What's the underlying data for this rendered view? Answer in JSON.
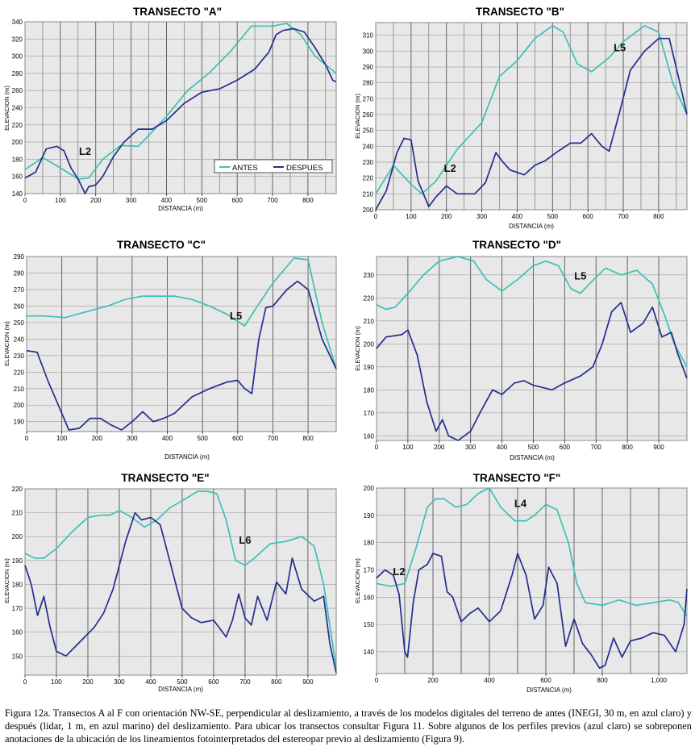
{
  "chart_data": [
    {
      "type": "line",
      "title": "TRANSECTO \"A\"",
      "xlabel": "DISTANCIA (m)",
      "ylabel": "ELEVACION (m)",
      "xlim": [
        0,
        880
      ],
      "ylim": [
        140,
        340
      ],
      "xticks": [
        0,
        100,
        200,
        300,
        400,
        500,
        600,
        700,
        800
      ],
      "xtick_labels": [
        "0",
        "100",
        "200",
        "300",
        "400",
        "500",
        "600",
        "700",
        "800"
      ],
      "yticks": [
        140,
        160,
        180,
        200,
        220,
        240,
        260,
        280,
        300,
        320,
        340
      ],
      "grid_step": 50,
      "legend": [
        "ANTES",
        "DESPUES"
      ],
      "annotations": [
        {
          "text": "L2",
          "x": 170,
          "y": 185
        }
      ],
      "series": [
        {
          "name": "ANTES",
          "color": "#3cc1b5",
          "x": [
            0,
            50,
            100,
            150,
            180,
            220,
            270,
            320,
            360,
            400,
            460,
            520,
            580,
            640,
            700,
            740,
            780,
            820,
            880
          ],
          "y": [
            168,
            182,
            170,
            157,
            158,
            180,
            196,
            195,
            212,
            230,
            260,
            280,
            305,
            335,
            335,
            338,
            325,
            300,
            280
          ]
        },
        {
          "name": "DESPUES",
          "color": "#242e8c",
          "x": [
            0,
            30,
            60,
            90,
            110,
            130,
            150,
            170,
            180,
            200,
            220,
            250,
            280,
            320,
            360,
            400,
            450,
            500,
            550,
            600,
            650,
            690,
            710,
            730,
            760,
            790,
            820,
            850,
            870,
            880
          ],
          "y": [
            158,
            165,
            192,
            195,
            190,
            170,
            157,
            140,
            148,
            150,
            160,
            183,
            200,
            215,
            215,
            225,
            245,
            258,
            262,
            272,
            285,
            305,
            325,
            330,
            332,
            328,
            310,
            290,
            272,
            270
          ]
        }
      ]
    },
    {
      "type": "line",
      "title": "TRANSECTO \"B\"",
      "xlabel": "DISTANCIA (m)",
      "ylabel": "ELEVACION (m)",
      "xlim": [
        0,
        880
      ],
      "ylim": [
        200,
        318
      ],
      "xticks": [
        0,
        100,
        200,
        300,
        400,
        500,
        600,
        700,
        800
      ],
      "xtick_labels": [
        "0",
        "100",
        "200",
        "300",
        "400",
        "500",
        "600",
        "700",
        "800"
      ],
      "yticks": [
        200,
        210,
        220,
        230,
        240,
        250,
        260,
        270,
        280,
        290,
        300,
        310
      ],
      "grid_step": 50,
      "annotations": [
        {
          "text": "L2",
          "x": 210,
          "y": 224
        },
        {
          "text": "L5",
          "x": 690,
          "y": 300
        }
      ],
      "series": [
        {
          "name": "ANTES",
          "color": "#3cc1b5",
          "x": [
            0,
            50,
            100,
            130,
            170,
            230,
            300,
            350,
            400,
            450,
            500,
            530,
            570,
            610,
            660,
            700,
            760,
            800,
            840,
            880
          ],
          "y": [
            210,
            228,
            216,
            210,
            218,
            238,
            255,
            284,
            294,
            308,
            316,
            312,
            292,
            287,
            296,
            306,
            316,
            312,
            280,
            260
          ]
        },
        {
          "name": "DESPUES",
          "color": "#242e8c",
          "x": [
            0,
            30,
            60,
            80,
            100,
            120,
            150,
            170,
            200,
            230,
            260,
            280,
            310,
            340,
            360,
            380,
            420,
            450,
            480,
            510,
            550,
            580,
            610,
            640,
            660,
            690,
            720,
            760,
            800,
            830,
            860,
            880
          ],
          "y": [
            200,
            212,
            236,
            245,
            244,
            218,
            202,
            208,
            215,
            210,
            210,
            210,
            217,
            236,
            230,
            225,
            222,
            228,
            231,
            236,
            242,
            242,
            248,
            240,
            237,
            262,
            288,
            300,
            308,
            308,
            280,
            260
          ]
        }
      ]
    },
    {
      "type": "line",
      "title": "TRANSECTO \"C\"",
      "xlabel": "DISTANCIA (m)",
      "ylabel": "ELEVACION (m)",
      "xlim": [
        0,
        880
      ],
      "ylim": [
        184,
        290
      ],
      "xticks": [
        0,
        100,
        200,
        300,
        400,
        500,
        600,
        700,
        800
      ],
      "xtick_labels": [
        "0",
        "100",
        "200",
        "300",
        "400",
        "500",
        "600",
        "700",
        "800"
      ],
      "yticks": [
        190,
        200,
        210,
        220,
        230,
        240,
        250,
        260,
        270,
        280,
        290
      ],
      "grid_step": 100,
      "annotations": [
        {
          "text": "L5",
          "x": 595,
          "y": 252
        }
      ],
      "series": [
        {
          "name": "ANTES",
          "color": "#3cc1b5",
          "x": [
            0,
            50,
            110,
            160,
            230,
            280,
            330,
            380,
            420,
            470,
            520,
            570,
            620,
            650,
            700,
            760,
            800,
            840,
            880
          ],
          "y": [
            254,
            254,
            253,
            256,
            260,
            264,
            266,
            266,
            266,
            264,
            260,
            255,
            248,
            258,
            274,
            289,
            288,
            250,
            222
          ]
        },
        {
          "name": "DESPUES",
          "color": "#242e8c",
          "x": [
            0,
            30,
            60,
            90,
            120,
            150,
            180,
            210,
            240,
            270,
            300,
            330,
            360,
            390,
            420,
            470,
            520,
            570,
            600,
            620,
            640,
            660,
            680,
            700,
            740,
            770,
            800,
            840,
            880
          ],
          "y": [
            233,
            232,
            215,
            200,
            185,
            186,
            192,
            192,
            188,
            185,
            190,
            196,
            190,
            192,
            195,
            205,
            210,
            214,
            215,
            210,
            207,
            240,
            259,
            260,
            270,
            275,
            270,
            240,
            222
          ]
        }
      ]
    },
    {
      "type": "line",
      "title": "TRANSECTO \"D\"",
      "xlabel": "DISTANCIA (m)",
      "ylabel": "ELEVACION (m)",
      "xlim": [
        0,
        990
      ],
      "ylim": [
        158,
        238
      ],
      "xticks": [
        0,
        100,
        200,
        300,
        400,
        500,
        600,
        700,
        800,
        900
      ],
      "xtick_labels": [
        "0",
        "100",
        "200",
        "300",
        "400",
        "500",
        "600",
        "700",
        "800",
        "900"
      ],
      "yticks": [
        160,
        170,
        180,
        190,
        200,
        210,
        220,
        230
      ],
      "grid_step": 100,
      "annotations": [
        {
          "text": "L5",
          "x": 650,
          "y": 228
        }
      ],
      "series": [
        {
          "name": "ANTES",
          "color": "#3cc1b5",
          "x": [
            0,
            30,
            60,
            100,
            150,
            200,
            260,
            310,
            350,
            400,
            450,
            500,
            540,
            580,
            620,
            650,
            700,
            730,
            780,
            830,
            880,
            920,
            950,
            990
          ],
          "y": [
            217,
            215,
            216,
            222,
            230,
            236,
            238,
            236,
            228,
            223,
            228,
            234,
            236,
            234,
            224,
            222,
            229,
            233,
            230,
            232,
            226,
            212,
            200,
            190
          ]
        },
        {
          "name": "DESPUES",
          "color": "#242e8c",
          "x": [
            0,
            30,
            80,
            100,
            130,
            160,
            190,
            210,
            230,
            260,
            280,
            300,
            330,
            370,
            400,
            440,
            470,
            500,
            530,
            560,
            600,
            650,
            690,
            720,
            750,
            780,
            810,
            850,
            880,
            910,
            940,
            960,
            990
          ],
          "y": [
            198,
            203,
            204,
            206,
            195,
            175,
            162,
            167,
            160,
            158,
            160,
            162,
            170,
            180,
            178,
            183,
            184,
            182,
            181,
            180,
            183,
            186,
            190,
            200,
            214,
            218,
            205,
            209,
            216,
            203,
            205,
            196,
            185
          ]
        }
      ]
    },
    {
      "type": "line",
      "title": "TRANSECTO \"E\"",
      "xlabel": "DISTANCIA (m)",
      "ylabel": "ELEVACION (m)",
      "xlim": [
        0,
        990
      ],
      "ylim": [
        142,
        220
      ],
      "xticks": [
        0,
        100,
        200,
        300,
        400,
        500,
        600,
        700,
        800,
        900
      ],
      "xtick_labels": [
        "0",
        "100",
        "200",
        "300",
        "400",
        "500",
        "600",
        "700",
        "800",
        "900"
      ],
      "yticks": [
        150,
        160,
        170,
        180,
        190,
        200,
        210,
        220
      ],
      "grid_step": 100,
      "annotations": [
        {
          "text": "L6",
          "x": 700,
          "y": 197
        }
      ],
      "series": [
        {
          "name": "ANTES",
          "color": "#3cc1b5",
          "x": [
            0,
            30,
            60,
            100,
            150,
            200,
            240,
            270,
            300,
            340,
            380,
            420,
            460,
            500,
            550,
            580,
            610,
            640,
            670,
            700,
            730,
            780,
            830,
            880,
            920,
            950,
            990
          ],
          "y": [
            193,
            191,
            191,
            195,
            202,
            208,
            209,
            209,
            211,
            208,
            204,
            207,
            212,
            215,
            219,
            219,
            218,
            207,
            190,
            188,
            191,
            197,
            198,
            200,
            196,
            180,
            145
          ]
        },
        {
          "name": "DESPUES",
          "color": "#242e8c",
          "x": [
            0,
            20,
            40,
            60,
            80,
            100,
            130,
            160,
            190,
            220,
            250,
            280,
            320,
            350,
            370,
            400,
            430,
            460,
            500,
            530,
            560,
            600,
            640,
            660,
            680,
            700,
            720,
            740,
            770,
            800,
            830,
            850,
            880,
            920,
            950,
            970,
            990
          ],
          "y": [
            188,
            180,
            167,
            175,
            162,
            152,
            150,
            154,
            158,
            162,
            168,
            178,
            198,
            210,
            207,
            208,
            205,
            190,
            170,
            166,
            164,
            165,
            158,
            165,
            176,
            166,
            163,
            175,
            165,
            181,
            176,
            191,
            178,
            173,
            175,
            155,
            143
          ]
        }
      ]
    },
    {
      "type": "line",
      "title": "TRANSECTO \"F\"",
      "xlabel": "DISTANCIA (m)",
      "ylabel": "ELEVACION (m)",
      "xlim": [
        0,
        1100
      ],
      "ylim": [
        132,
        200
      ],
      "xticks": [
        0,
        200,
        400,
        600,
        800,
        1000
      ],
      "xtick_labels": [
        "0",
        "200",
        "400",
        "600",
        "800",
        "1,000"
      ],
      "yticks": [
        140,
        150,
        160,
        170,
        180,
        190,
        200
      ],
      "grid_step": 100,
      "annotations": [
        {
          "text": "L2",
          "x": 80,
          "y": 168
        },
        {
          "text": "L4",
          "x": 510,
          "y": 193
        }
      ],
      "series": [
        {
          "name": "ANTES",
          "color": "#3cc1b5",
          "x": [
            0,
            50,
            100,
            140,
            180,
            210,
            240,
            280,
            320,
            360,
            400,
            440,
            490,
            530,
            560,
            600,
            640,
            680,
            710,
            740,
            800,
            860,
            920,
            980,
            1040,
            1070,
            1100
          ],
          "y": [
            165,
            164,
            165,
            178,
            193,
            196,
            196,
            193,
            194,
            198,
            200,
            193,
            188,
            188,
            190,
            194,
            192,
            180,
            165,
            158,
            157,
            159,
            157,
            158,
            159,
            158,
            153
          ]
        },
        {
          "name": "DESPUES",
          "color": "#242e8c",
          "x": [
            0,
            30,
            60,
            80,
            100,
            110,
            130,
            150,
            180,
            200,
            230,
            250,
            270,
            300,
            330,
            360,
            400,
            440,
            480,
            500,
            530,
            560,
            590,
            610,
            640,
            670,
            700,
            730,
            760,
            790,
            810,
            840,
            870,
            900,
            940,
            980,
            1020,
            1060,
            1090,
            1100
          ],
          "y": [
            167,
            170,
            168,
            161,
            140,
            138,
            158,
            170,
            172,
            176,
            175,
            162,
            160,
            151,
            154,
            156,
            151,
            155,
            168,
            176,
            168,
            152,
            157,
            171,
            165,
            142,
            152,
            143,
            139,
            134,
            135,
            145,
            138,
            144,
            145,
            147,
            146,
            140,
            150,
            163
          ]
        }
      ]
    }
  ],
  "legend": {
    "antes": "ANTES",
    "despues": "DESPUES"
  },
  "caption": "Figura 12a. Transectos A al F con orientación NW-SE, perpendicular al deslizamiento, a través de los modelos digitales del terreno de antes (INEGI, 30 m, en azul claro) y después (lidar, 1 m, en azul marino) del deslizamiento. Para ubicar los transectos consultar Figura 11. Sobre algunos de los perfiles previos (azul claro) se sobreponen anotaciones de la ubicación de los lineamientos fotointerpretados del estereopar previo al deslizamiento (Figura 9)."
}
